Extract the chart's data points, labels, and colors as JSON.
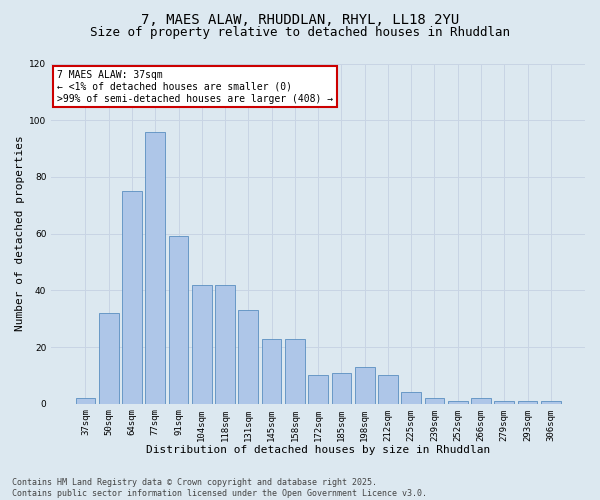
{
  "title_line1": "7, MAES ALAW, RHUDDLAN, RHYL, LL18 2YU",
  "title_line2": "Size of property relative to detached houses in Rhuddlan",
  "xlabel": "Distribution of detached houses by size in Rhuddlan",
  "ylabel": "Number of detached properties",
  "categories": [
    "37sqm",
    "50sqm",
    "64sqm",
    "77sqm",
    "91sqm",
    "104sqm",
    "118sqm",
    "131sqm",
    "145sqm",
    "158sqm",
    "172sqm",
    "185sqm",
    "198sqm",
    "212sqm",
    "225sqm",
    "239sqm",
    "252sqm",
    "266sqm",
    "279sqm",
    "293sqm",
    "306sqm"
  ],
  "values": [
    2,
    32,
    75,
    96,
    59,
    42,
    42,
    33,
    23,
    23,
    10,
    11,
    13,
    10,
    4,
    2,
    1,
    2,
    1,
    1,
    1
  ],
  "bar_color": "#aec6e8",
  "bar_edge_color": "#5a8fc0",
  "ylim": [
    0,
    120
  ],
  "yticks": [
    0,
    20,
    40,
    60,
    80,
    100,
    120
  ],
  "grid_color": "#c8d4e4",
  "background_color": "#dce8f0",
  "annotation_text": "7 MAES ALAW: 37sqm\n← <1% of detached houses are smaller (0)\n>99% of semi-detached houses are larger (408) →",
  "annotation_box_color": "#ffffff",
  "annotation_box_edge": "#cc0000",
  "footer_line1": "Contains HM Land Registry data © Crown copyright and database right 2025.",
  "footer_line2": "Contains public sector information licensed under the Open Government Licence v3.0.",
  "title_fontsize": 10,
  "subtitle_fontsize": 9,
  "tick_fontsize": 6.5,
  "label_fontsize": 8,
  "annotation_fontsize": 7,
  "footer_fontsize": 6
}
